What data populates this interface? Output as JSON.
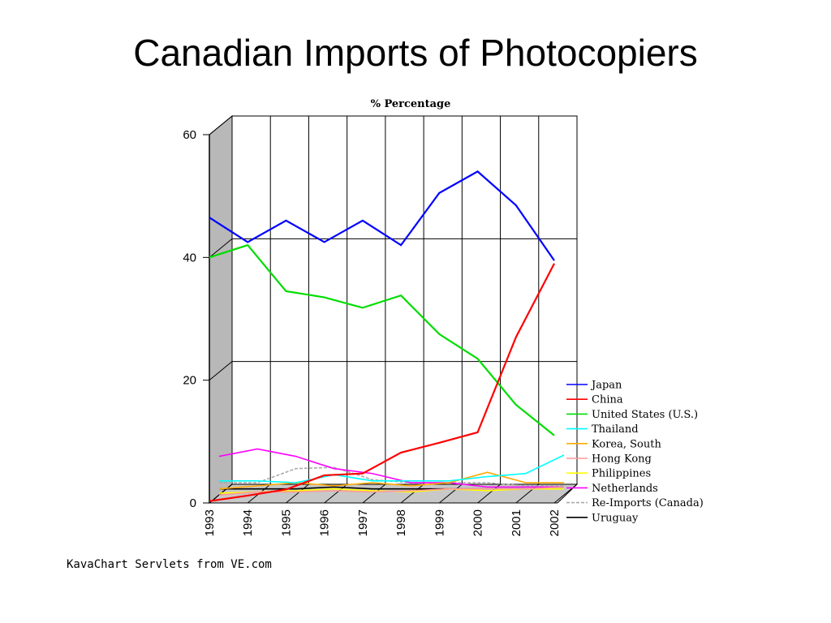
{
  "slide": {
    "title": "Canadian Imports of Photocopiers",
    "footer": "KavaChart Servlets from VE.com"
  },
  "chart_data": {
    "type": "line",
    "title": "% Percentage",
    "xlabel": "",
    "ylabel": "",
    "x": [
      "1993",
      "1994",
      "1995",
      "1996",
      "1997",
      "1998",
      "1999",
      "2000",
      "2001",
      "2002"
    ],
    "x_tick_labels": [
      "1993",
      "1994",
      "1995",
      "1996",
      "1997",
      "1998",
      "1999",
      "2000",
      "2001",
      "2002"
    ],
    "ylim": [
      0,
      60
    ],
    "y_ticks": [
      0,
      20,
      40,
      60
    ],
    "grid": true,
    "legend_position": "right",
    "series": [
      {
        "name": "Japan",
        "color": "#0000ff",
        "values": [
          46.5,
          42.5,
          46,
          42.5,
          46,
          42,
          50.5,
          54,
          48.5,
          39.5
        ]
      },
      {
        "name": "China",
        "color": "#ff0000",
        "values": [
          0.3,
          1.2,
          2.2,
          4.5,
          4.8,
          8.2,
          9.8,
          11.5,
          27,
          39
        ]
      },
      {
        "name": "United States (U.S.)",
        "color": "#00dd00",
        "values": [
          40,
          42,
          34.5,
          33.5,
          31.8,
          33.8,
          27.5,
          23.5,
          16,
          11
        ]
      },
      {
        "name": "Thailand",
        "color": "#00ffff",
        "values": [
          2.8,
          2.8,
          2.5,
          3.8,
          2.8,
          2.8,
          2.8,
          3.5,
          4,
          7
        ]
      },
      {
        "name": "Korea, South",
        "color": "#ffaa00",
        "values": [
          1.5,
          2,
          2.5,
          2,
          2.5,
          2,
          2.5,
          4.2,
          2.5,
          2.5
        ]
      },
      {
        "name": "Hong Kong",
        "color": "#ff9999",
        "values": [
          0.5,
          1,
          1,
          1.2,
          1,
          1.2,
          1.5,
          1.5,
          1.5,
          1.8
        ]
      },
      {
        "name": "Philippines",
        "color": "#ffff00",
        "values": [
          0.8,
          1,
          1.2,
          1.5,
          1.2,
          1,
          1.5,
          1.2,
          1.5,
          1.5
        ]
      },
      {
        "name": "Netherlands",
        "color": "#ff00ff",
        "values": [
          6.8,
          8,
          6.8,
          4.8,
          4,
          2.5,
          2.5,
          1.8,
          1.8,
          1.8
        ]
      },
      {
        "name": "Re-Imports (Canada)",
        "color": "#aaaaaa",
        "values": [
          2.5,
          2.5,
          4.8,
          5,
          3,
          2.5,
          2.5,
          2.5,
          2,
          2
        ]
      },
      {
        "name": "Uruguay",
        "color": "#000000",
        "values": [
          1.5,
          1.5,
          1.5,
          1.8,
          1.5,
          1.5,
          1.5,
          1.5,
          1.5,
          1.5
        ]
      }
    ]
  }
}
